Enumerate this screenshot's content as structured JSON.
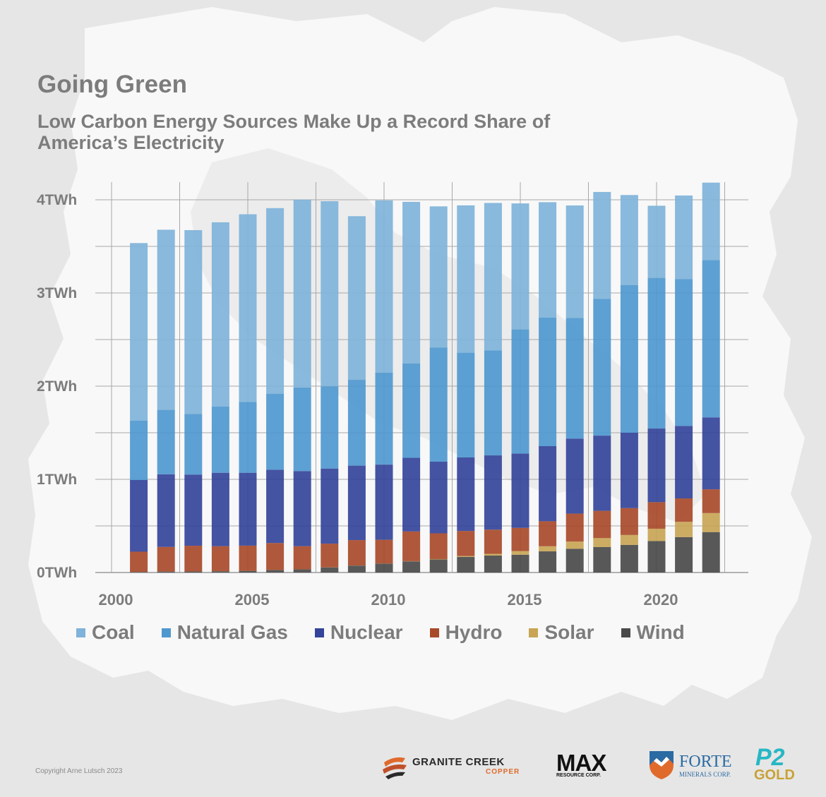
{
  "title": "Going Green",
  "subtitle": "Low Carbon Energy Sources Make Up a Record Share of America’s Electricity",
  "copyright": "Copyright Arne Lutsch 2023",
  "logos": {
    "granite_creek": {
      "name": "GRANITE CREEK",
      "sub": "COPPER"
    },
    "max": {
      "name": "MAX",
      "sub": "RESOURCE CORP."
    },
    "forte": {
      "name": "FORTE",
      "sub": "MINERALS CORP."
    },
    "p2": {
      "name": "P2",
      "sub": "GOLD"
    }
  },
  "chart_data": {
    "type": "bar",
    "stacked": true,
    "title": "Going Green",
    "subtitle": "Low Carbon Energy Sources Make Up a Record Share of America’s Electricity",
    "xlabel": "",
    "ylabel": "",
    "ylim": [
      0,
      4.2
    ],
    "yticks": [
      0,
      1,
      2,
      3,
      4
    ],
    "ytick_labels": [
      "0TWh",
      "1TWh",
      "2TWh",
      "3TWh",
      "4TWh"
    ],
    "xticks": [
      2000,
      2005,
      2010,
      2015,
      2020
    ],
    "xtick_labels": [
      "2000",
      "2005",
      "2010",
      "2015",
      "2020"
    ],
    "xlim": [
      2000,
      2023
    ],
    "grid": true,
    "legend_position": "bottom",
    "x": [
      2001,
      2002,
      2003,
      2004,
      2005,
      2006,
      2007,
      2008,
      2009,
      2010,
      2011,
      2012,
      2013,
      2014,
      2015,
      2016,
      2017,
      2018,
      2019,
      2020,
      2021,
      2022
    ],
    "series": [
      {
        "name": "Wind",
        "color": "#4a4a4a",
        "values": [
          0.006,
          0.01,
          0.011,
          0.014,
          0.018,
          0.027,
          0.034,
          0.055,
          0.074,
          0.095,
          0.12,
          0.14,
          0.168,
          0.182,
          0.191,
          0.227,
          0.255,
          0.273,
          0.296,
          0.338,
          0.38,
          0.434
        ]
      },
      {
        "name": "Solar",
        "color": "#c8a555",
        "values": [
          0.0005,
          0.0006,
          0.0005,
          0.0006,
          0.0006,
          0.0005,
          0.0006,
          0.0009,
          0.0009,
          0.0012,
          0.0018,
          0.0043,
          0.009,
          0.018,
          0.039,
          0.055,
          0.077,
          0.096,
          0.107,
          0.132,
          0.164,
          0.204
        ]
      },
      {
        "name": "Hydro",
        "color": "#a84a2a",
        "values": [
          0.217,
          0.264,
          0.276,
          0.268,
          0.27,
          0.289,
          0.248,
          0.254,
          0.273,
          0.255,
          0.319,
          0.276,
          0.269,
          0.26,
          0.249,
          0.268,
          0.3,
          0.293,
          0.288,
          0.285,
          0.251,
          0.255
        ]
      },
      {
        "name": "Nuclear",
        "color": "#34449a",
        "values": [
          0.769,
          0.78,
          0.764,
          0.788,
          0.782,
          0.787,
          0.806,
          0.806,
          0.799,
          0.807,
          0.79,
          0.769,
          0.789,
          0.797,
          0.797,
          0.806,
          0.805,
          0.807,
          0.809,
          0.79,
          0.778,
          0.772
        ]
      },
      {
        "name": "Natural Gas",
        "color": "#4f98cf",
        "values": [
          0.639,
          0.691,
          0.649,
          0.71,
          0.761,
          0.816,
          0.897,
          0.883,
          0.921,
          0.988,
          1.014,
          1.226,
          1.124,
          1.127,
          1.333,
          1.379,
          1.296,
          1.469,
          1.586,
          1.617,
          1.575,
          1.687
        ]
      },
      {
        "name": "Coal",
        "color": "#7fb3d9",
        "values": [
          1.904,
          1.933,
          1.974,
          1.978,
          2.013,
          1.991,
          2.016,
          1.986,
          1.756,
          1.847,
          1.733,
          1.514,
          1.581,
          1.582,
          1.352,
          1.239,
          1.206,
          1.146,
          0.965,
          0.774,
          0.898,
          0.832
        ]
      }
    ],
    "legend": [
      {
        "name": "Coal",
        "color": "#7fb3d9"
      },
      {
        "name": "Natural Gas",
        "color": "#4f98cf"
      },
      {
        "name": "Nuclear",
        "color": "#34449a"
      },
      {
        "name": "Hydro",
        "color": "#a84a2a"
      },
      {
        "name": "Solar",
        "color": "#c8a555"
      },
      {
        "name": "Wind",
        "color": "#4a4a4a"
      }
    ]
  }
}
